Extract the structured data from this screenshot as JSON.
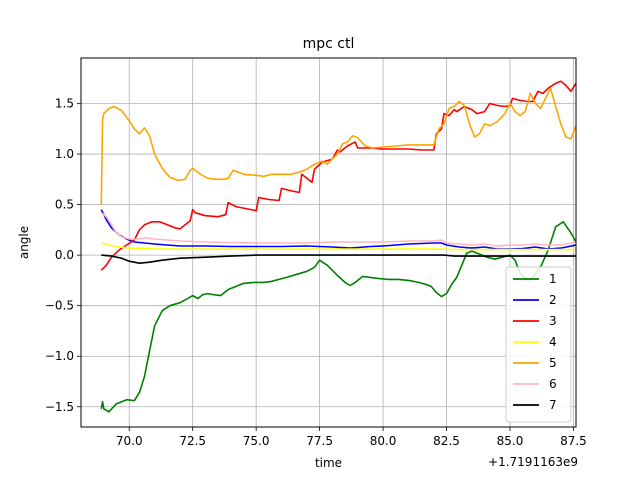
{
  "chart_data": {
    "type": "line",
    "title": "mpc ctl",
    "xlabel": "time",
    "ylabel": "angle",
    "x_offset_label": "+1.7191163e9",
    "xlim": [
      68.1,
      87.6
    ],
    "ylim": [
      -1.7,
      1.95
    ],
    "x_ticks": [
      70.0,
      72.5,
      75.0,
      77.5,
      80.0,
      82.5,
      85.0,
      87.5
    ],
    "x_tick_labels": [
      "70.0",
      "72.5",
      "75.0",
      "77.5",
      "80.0",
      "82.5",
      "85.0",
      "87.5"
    ],
    "y_ticks": [
      -1.5,
      -1.0,
      -0.5,
      0.0,
      0.5,
      1.0,
      1.5
    ],
    "y_tick_labels": [
      "−1.5",
      "−1.0",
      "−0.5",
      "0.0",
      "0.5",
      "1.0",
      "1.5"
    ],
    "grid": true,
    "legend_position": "lower-right",
    "series": [
      {
        "name": "1",
        "color": "#008000",
        "x": [
          68.9,
          68.95,
          69.0,
          69.2,
          69.5,
          69.9,
          70.2,
          70.4,
          70.6,
          70.8,
          71.0,
          71.3,
          71.6,
          72.0,
          72.3,
          72.5,
          72.7,
          72.9,
          73.1,
          73.3,
          73.6,
          73.9,
          74.2,
          74.5,
          74.9,
          75.3,
          75.6,
          75.9,
          76.2,
          76.6,
          77.0,
          77.3,
          77.5,
          77.8,
          78.2,
          78.5,
          78.7,
          78.9,
          79.2,
          79.5,
          79.8,
          80.2,
          80.6,
          81.0,
          81.4,
          81.7,
          81.9,
          82.1,
          82.3,
          82.5,
          82.7,
          82.9,
          83.1,
          83.3,
          83.5,
          83.8,
          84.1,
          84.4,
          84.7,
          85.0,
          85.2,
          85.4,
          85.7,
          85.9,
          86.2,
          86.5,
          86.8,
          87.1,
          87.4,
          87.6
        ],
        "y": [
          -1.52,
          -1.45,
          -1.52,
          -1.55,
          -1.47,
          -1.43,
          -1.44,
          -1.36,
          -1.2,
          -0.95,
          -0.7,
          -0.55,
          -0.5,
          -0.47,
          -0.43,
          -0.4,
          -0.43,
          -0.39,
          -0.38,
          -0.39,
          -0.4,
          -0.34,
          -0.31,
          -0.28,
          -0.27,
          -0.27,
          -0.26,
          -0.24,
          -0.22,
          -0.19,
          -0.16,
          -0.12,
          -0.05,
          -0.1,
          -0.2,
          -0.27,
          -0.3,
          -0.27,
          -0.21,
          -0.22,
          -0.23,
          -0.24,
          -0.24,
          -0.25,
          -0.27,
          -0.29,
          -0.31,
          -0.37,
          -0.41,
          -0.38,
          -0.29,
          -0.22,
          -0.1,
          0.02,
          0.04,
          0.01,
          -0.02,
          -0.04,
          -0.02,
          0.0,
          -0.05,
          -0.18,
          -0.25,
          -0.22,
          -0.12,
          0.05,
          0.28,
          0.33,
          0.22,
          0.13
        ]
      },
      {
        "name": "2",
        "color": "#0000ff",
        "x": [
          68.9,
          69.1,
          69.3,
          69.6,
          69.9,
          70.2,
          70.6,
          71.0,
          71.5,
          72.0,
          73.0,
          74.0,
          75.0,
          76.0,
          77.0,
          78.0,
          78.7,
          79.0,
          79.5,
          80.0,
          80.5,
          81.0,
          81.5,
          82.0,
          82.3,
          82.5,
          83.0,
          83.5,
          84.0,
          84.5,
          85.0,
          85.5,
          86.0,
          86.5,
          87.0,
          87.6
        ],
        "y": [
          0.45,
          0.35,
          0.27,
          0.2,
          0.16,
          0.13,
          0.12,
          0.11,
          0.1,
          0.09,
          0.09,
          0.085,
          0.085,
          0.085,
          0.09,
          0.08,
          0.07,
          0.075,
          0.085,
          0.09,
          0.1,
          0.11,
          0.115,
          0.12,
          0.12,
          0.1,
          0.08,
          0.07,
          0.08,
          0.06,
          0.06,
          0.065,
          0.08,
          0.06,
          0.07,
          0.1
        ]
      },
      {
        "name": "3",
        "color": "#ff0000",
        "x": [
          68.9,
          69.1,
          69.3,
          69.6,
          69.9,
          70.2,
          70.4,
          70.6,
          70.9,
          71.2,
          71.5,
          71.8,
          72.0,
          72.4,
          72.5,
          72.6,
          73.0,
          73.5,
          73.8,
          73.9,
          74.2,
          74.8,
          75.0,
          75.1,
          75.5,
          75.9,
          76.0,
          76.3,
          76.7,
          76.8,
          77.2,
          77.3,
          77.6,
          78.0,
          78.2,
          78.3,
          78.6,
          78.9,
          79.0,
          79.5,
          80.0,
          80.5,
          81.0,
          81.5,
          82.0,
          82.1,
          82.3,
          82.4,
          82.6,
          82.8,
          82.9,
          83.2,
          83.5,
          83.7,
          84.0,
          84.2,
          84.5,
          84.8,
          85.0,
          85.1,
          85.4,
          85.7,
          85.9,
          86.1,
          86.3,
          86.5,
          86.8,
          87.0,
          87.2,
          87.4,
          87.6
        ],
        "y": [
          -0.15,
          -0.1,
          -0.02,
          0.05,
          0.1,
          0.15,
          0.25,
          0.3,
          0.33,
          0.33,
          0.3,
          0.27,
          0.26,
          0.34,
          0.45,
          0.42,
          0.39,
          0.38,
          0.4,
          0.52,
          0.48,
          0.45,
          0.44,
          0.57,
          0.55,
          0.54,
          0.66,
          0.64,
          0.62,
          0.8,
          0.72,
          0.85,
          0.92,
          0.95,
          1.04,
          1.02,
          1.08,
          1.12,
          1.06,
          1.06,
          1.05,
          1.05,
          1.05,
          1.04,
          1.04,
          1.2,
          1.25,
          1.4,
          1.38,
          1.44,
          1.42,
          1.47,
          1.44,
          1.4,
          1.42,
          1.5,
          1.48,
          1.47,
          1.48,
          1.55,
          1.53,
          1.52,
          1.52,
          1.62,
          1.6,
          1.65,
          1.7,
          1.72,
          1.68,
          1.62,
          1.7
        ]
      },
      {
        "name": "4",
        "color": "#ffff00",
        "x": [
          68.9,
          69.2,
          69.6,
          70.0,
          70.5,
          71.0,
          72.0,
          73.0,
          74.0,
          75.0,
          76.0,
          77.0,
          78.0,
          79.0,
          80.0,
          81.0,
          82.0,
          83.0,
          84.0,
          85.0,
          86.0,
          87.0,
          87.6
        ],
        "y": [
          0.12,
          0.1,
          0.08,
          0.07,
          0.065,
          0.06,
          0.06,
          0.06,
          0.06,
          0.06,
          0.06,
          0.06,
          0.06,
          0.06,
          0.06,
          0.06,
          0.06,
          0.055,
          0.055,
          0.055,
          0.055,
          0.055,
          0.055
        ]
      },
      {
        "name": "5",
        "color": "#ffa500",
        "x": [
          68.9,
          68.95,
          69.0,
          69.2,
          69.4,
          69.7,
          70.0,
          70.2,
          70.4,
          70.6,
          70.8,
          71.0,
          71.3,
          71.6,
          71.9,
          72.2,
          72.4,
          72.5,
          72.8,
          73.1,
          73.4,
          73.7,
          73.9,
          74.1,
          74.5,
          75.0,
          75.3,
          75.6,
          76.0,
          76.4,
          76.8,
          77.0,
          77.3,
          77.6,
          77.8,
          78.0,
          78.2,
          78.4,
          78.6,
          78.8,
          79.0,
          79.3,
          79.6,
          80.0,
          80.5,
          81.0,
          81.5,
          82.0,
          82.2,
          82.4,
          82.6,
          82.8,
          83.0,
          83.2,
          83.4,
          83.6,
          83.8,
          84.0,
          84.2,
          84.5,
          84.8,
          85.0,
          85.2,
          85.4,
          85.6,
          85.8,
          86.0,
          86.2,
          86.4,
          86.6,
          86.8,
          87.0,
          87.2,
          87.4,
          87.6
        ],
        "y": [
          0.5,
          1.35,
          1.4,
          1.45,
          1.47,
          1.43,
          1.33,
          1.25,
          1.2,
          1.26,
          1.18,
          1.0,
          0.86,
          0.77,
          0.74,
          0.75,
          0.84,
          0.86,
          0.8,
          0.76,
          0.75,
          0.75,
          0.76,
          0.84,
          0.8,
          0.79,
          0.78,
          0.8,
          0.8,
          0.8,
          0.83,
          0.85,
          0.9,
          0.93,
          0.9,
          0.95,
          1.0,
          1.1,
          1.12,
          1.18,
          1.16,
          1.08,
          1.06,
          1.07,
          1.08,
          1.09,
          1.09,
          1.09,
          1.25,
          1.3,
          1.45,
          1.47,
          1.52,
          1.48,
          1.3,
          1.17,
          1.2,
          1.3,
          1.28,
          1.32,
          1.4,
          1.5,
          1.42,
          1.38,
          1.42,
          1.6,
          1.5,
          1.45,
          1.55,
          1.65,
          1.47,
          1.3,
          1.17,
          1.15,
          1.28
        ]
      },
      {
        "name": "6",
        "color": "#ffb6c1",
        "x": [
          68.9,
          69.0,
          69.1,
          69.3,
          69.5,
          69.7,
          70.0,
          70.3,
          70.7,
          71.0,
          71.5,
          72.0,
          73.0,
          74.0,
          75.0,
          76.0,
          77.0,
          78.0,
          79.0,
          80.0,
          81.0,
          82.0,
          82.3,
          82.5,
          83.0,
          83.5,
          84.0,
          84.5,
          85.0,
          85.5,
          86.0,
          86.5,
          87.0,
          87.6
        ],
        "y": [
          0.42,
          0.4,
          0.38,
          0.3,
          0.22,
          0.18,
          0.16,
          0.16,
          0.17,
          0.16,
          0.15,
          0.14,
          0.13,
          0.125,
          0.12,
          0.12,
          0.12,
          0.13,
          0.13,
          0.13,
          0.14,
          0.14,
          0.15,
          0.12,
          0.11,
          0.1,
          0.11,
          0.09,
          0.1,
          0.1,
          0.11,
          0.1,
          0.1,
          0.13
        ]
      },
      {
        "name": "7",
        "color": "#000000",
        "x": [
          68.9,
          69.3,
          69.7,
          70.0,
          70.4,
          70.8,
          71.3,
          72.0,
          73.0,
          74.0,
          75.0,
          76.0,
          77.0,
          78.0,
          79.0,
          80.0,
          81.0,
          82.0,
          82.4,
          82.8,
          83.2,
          83.6,
          84.0,
          84.4,
          84.8,
          85.2,
          85.6,
          86.0,
          86.4,
          86.8,
          87.2,
          87.6
        ],
        "y": [
          0.0,
          -0.01,
          -0.03,
          -0.06,
          -0.08,
          -0.07,
          -0.05,
          -0.03,
          -0.02,
          -0.01,
          0.0,
          0.0,
          0.0,
          0.0,
          0.0,
          0.0,
          0.0,
          0.0,
          0.0,
          -0.01,
          -0.01,
          -0.01,
          -0.01,
          -0.01,
          -0.01,
          -0.01,
          -0.01,
          -0.01,
          -0.01,
          -0.01,
          -0.01,
          -0.01
        ]
      }
    ]
  }
}
